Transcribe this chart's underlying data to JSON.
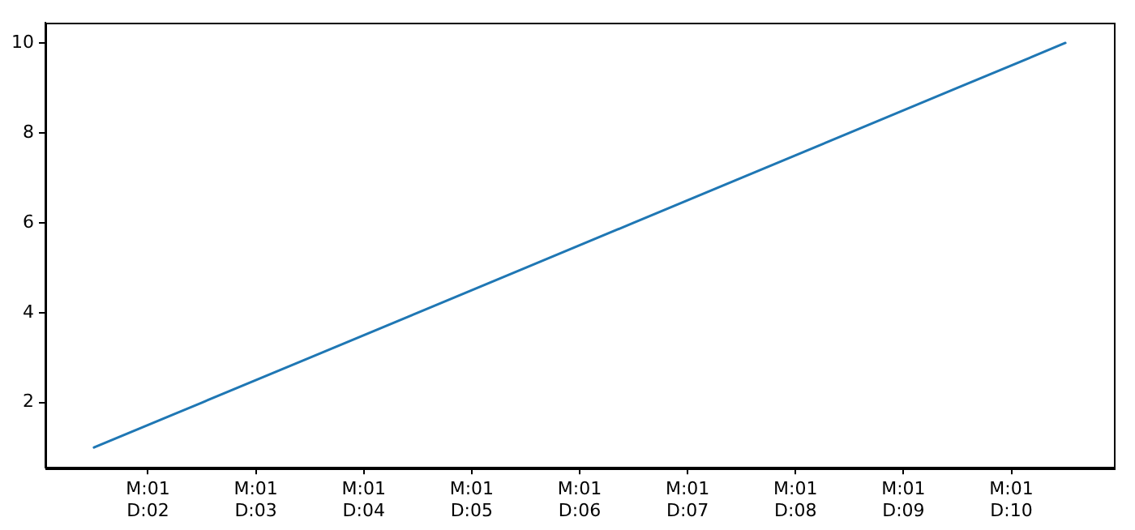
{
  "chart_data": {
    "type": "line",
    "x": [
      "--01-01T12:00",
      "--01-02T12:00",
      "--01-03T12:00",
      "--01-04T12:00",
      "--01-05T12:00",
      "--01-06T12:00",
      "--01-07T12:00",
      "--01-08T12:00",
      "--01-09T12:00",
      "--01-10T12:00"
    ],
    "series": [
      {
        "color": "#1f77b4",
        "values": [
          1,
          2,
          3,
          4,
          5,
          6,
          7,
          8,
          9,
          10
        ]
      }
    ],
    "xlim": [
      "--01-01T01:12",
      "--01-10T22:48"
    ],
    "xticks": [
      {
        "value": "--01-02",
        "label": "M:01\nD:02"
      },
      {
        "value": "--01-03",
        "label": "M:01\nD:03"
      },
      {
        "value": "--01-04",
        "label": "M:01\nD:04"
      },
      {
        "value": "--01-05",
        "label": "M:01\nD:05"
      },
      {
        "value": "--01-06",
        "label": "M:01\nD:06"
      },
      {
        "value": "--01-07",
        "label": "M:01\nD:07"
      },
      {
        "value": "--01-08",
        "label": "M:01\nD:08"
      },
      {
        "value": "--01-09",
        "label": "M:01\nD:09"
      },
      {
        "value": "--01-10",
        "label": "M:01\nD:10"
      }
    ],
    "ylim": [
      0.55,
      10.45
    ],
    "yticks": [
      2,
      4,
      6,
      8,
      10
    ],
    "grid": false,
    "legend": false,
    "marker": "none",
    "line_style": "solid"
  }
}
